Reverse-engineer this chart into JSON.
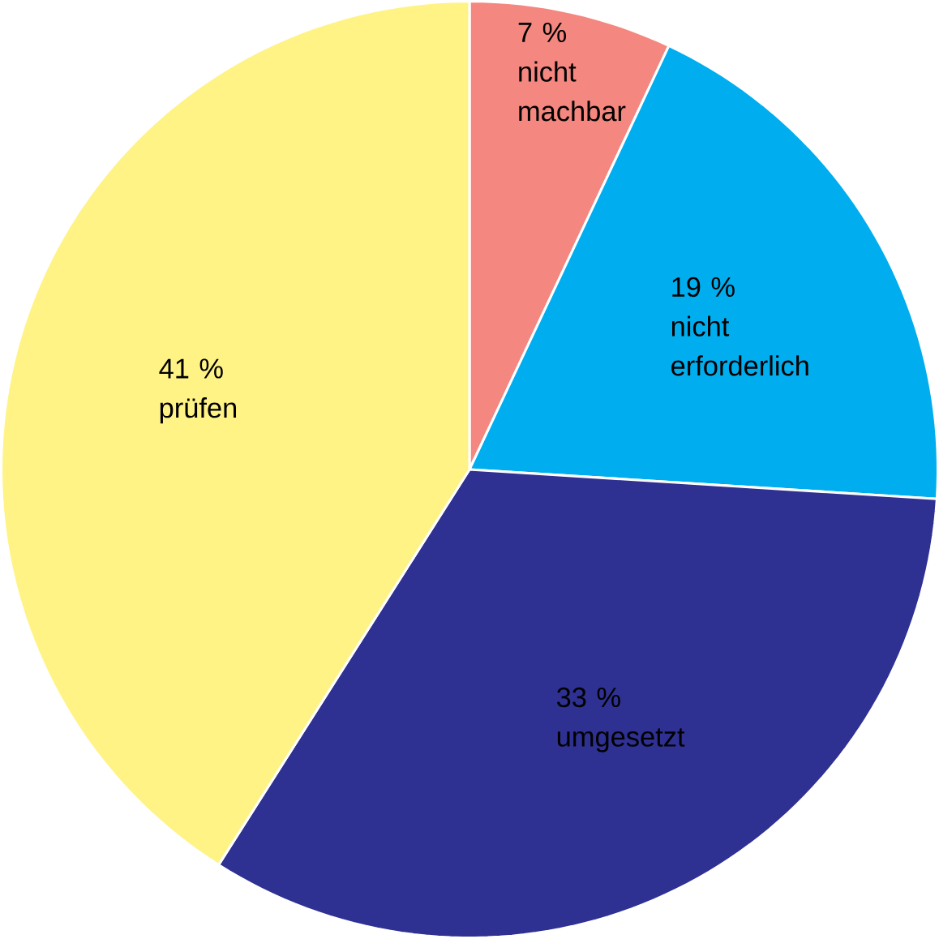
{
  "chart_data": {
    "type": "pie",
    "categories": [
      "nicht machbar",
      "nicht erforderlich",
      "umgesetzt",
      "prüfen"
    ],
    "values": [
      7,
      19,
      33,
      41
    ],
    "value_labels": [
      "7 %",
      "19 %",
      "33 %",
      "41 %"
    ],
    "colors": [
      "#f4877f",
      "#00aeef",
      "#2e3192",
      "#fff386"
    ]
  }
}
